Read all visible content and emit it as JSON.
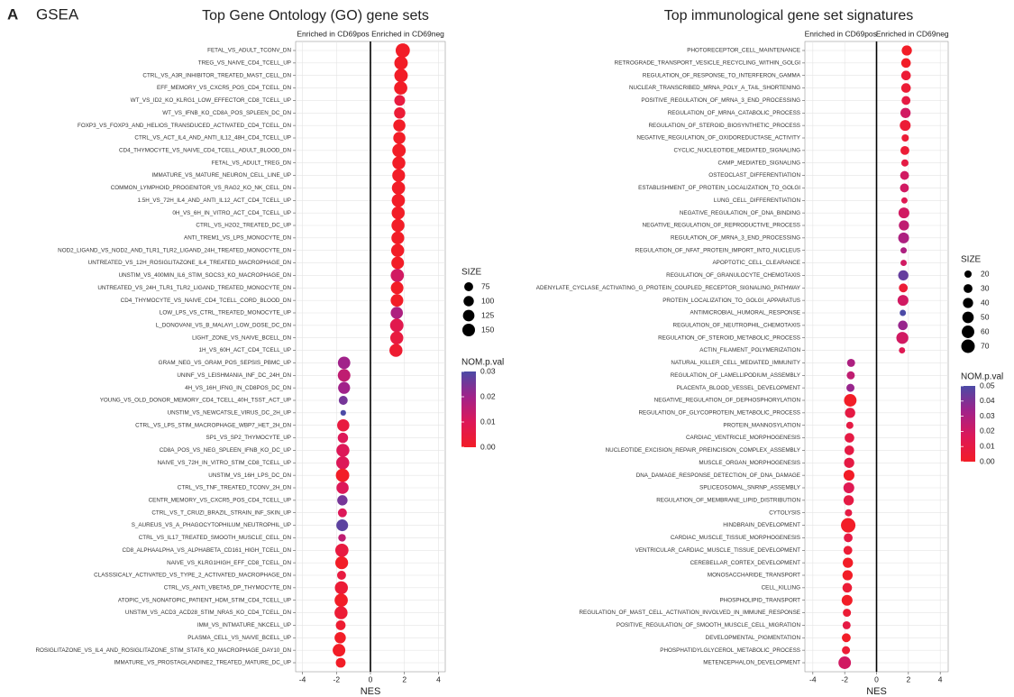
{
  "panel_label": "A",
  "panel_title": "GSEA",
  "chart_data": [
    {
      "type": "dot",
      "title": "Top Gene Ontology (GO) gene sets",
      "header_left": "Enriched in CD69pos",
      "header_right": "Enriched in CD69neg",
      "xlabel": "NES",
      "categories": [
        "FETAL_VS_ADULT_TCONV_DN",
        "TREG_VS_NAIVE_CD4_TCELL_UP",
        "CTRL_VS_A3R_INHIBITOR_TREATED_MAST_CELL_DN",
        "EFF_MEMORY_VS_CXCR5_POS_CD4_TCELL_DN",
        "WT_VS_ID2_KO_KLRG1_LOW_EFFECTOR_CD8_TCELL_UP",
        "WT_VS_IFNB_KO_CD8A_POS_SPLEEN_DC_DN",
        "FOXP3_VS_FOXP3_AND_HELIOS_TRANSDUCED_ACTIVATED_CD4_TCELL_DN",
        "CTRL_VS_ACT_IL4_AND_ANTI_IL12_48H_CD4_TCELL_UP",
        "CD4_THYMOCYTE_VS_NAIVE_CD4_TCELL_ADULT_BLOOD_DN",
        "FETAL_VS_ADULT_TREG_DN",
        "IMMATURE_VS_MATURE_NEURON_CELL_LINE_UP",
        "COMMON_LYMPHOID_PROGENITOR_VS_RAG2_KO_NK_CELL_DN",
        "1.5H_VS_72H_IL4_AND_ANTI_IL12_ACT_CD4_TCELL_UP",
        "0H_VS_6H_IN_VITRO_ACT_CD4_TCELL_UP",
        "CTRL_VS_H2O2_TREATED_DC_UP",
        "ANTI_TREM1_VS_LPS_MONOCYTE_DN",
        "NOD2_LIGAND_VS_NOD2_AND_TLR1_TLR2_LIGAND_24H_TREATED_MONOCYTE_DN",
        "UNTREATED_VS_12H_ROSIGLITAZONE_IL4_TREATED_MACROPHAGE_DN",
        "UNSTIM_VS_400MIN_IL6_STIM_SOCS3_KO_MACROPHAGE_DN",
        "UNTREATED_VS_24H_TLR1_TLR2_LIGAND_TREATED_MONOCYTE_DN",
        "CD4_THYMOCYTE_VS_NAIVE_CD4_TCELL_CORD_BLOOD_DN",
        "LOW_LPS_VS_CTRL_TREATED_MONOCYTE_UP",
        "L_DONOVANI_VS_B_MALAYI_LOW_DOSE_DC_DN",
        "LIGHT_ZONE_VS_NAIVE_BCELL_DN",
        "1H_VS_60H_ACT_CD4_TCELL_UP",
        "GRAM_NEG_VS_GRAM_POS_SEPSIS_PBMC_UP",
        "UNINF_VS_LEISHMANIA_INF_DC_24H_DN",
        "4H_VS_16H_IFNG_IN_CD8POS_DC_DN",
        "YOUNG_VS_OLD_DONOR_MEMORY_CD4_TCELL_40H_TSST_ACT_UP",
        "UNSTIM_VS_NEWCATSLE_VIRUS_DC_2H_UP",
        "CTRL_VS_LPS_STIM_MACROPHAGE_WBP7_HET_2H_DN",
        "SP1_VS_SP2_THYMOCYTE_UP",
        "CD8A_POS_VS_NEG_SPLEEN_IFNB_KO_DC_UP",
        "NAIVE_VS_72H_IN_VITRO_STIM_CD8_TCELL_UP",
        "UNSTIM_VS_16H_LPS_DC_DN",
        "CTRL_VS_TNF_TREATED_TCONV_2H_DN",
        "CENTR_MEMORY_VS_CXCR5_POS_CD4_TCELL_UP",
        "CTRL_VS_T_CRUZI_BRAZIL_STRAIN_INF_SKIN_UP",
        "S_AUREUS_VS_A_PHAGOCYTOPHILUM_NEUTROPHIL_UP",
        "CTRL_VS_IL17_TREATED_SMOOTH_MUSCLE_CELL_DN",
        "CD8_ALPHAALPHA_VS_ALPHABETA_CD161_HIGH_TCELL_DN",
        "NAIVE_VS_KLRG1HIGH_EFF_CD8_TCELL_DN",
        "CLASSSICALY_ACTIVATED_VS_TYPE_2_ACTIVATED_MACROPHAGE_DN",
        "CTRL_VS_ANTI_VBETA5_DP_THYMOCYTE_DN",
        "ATOPIC_VS_NONATOPIC_PATIENT_HDM_STIM_CD4_TCELL_UP",
        "UNSTIM_VS_ACD3_ACD28_STIM_NRAS_KO_CD4_TCELL_DN",
        "IMM_VS_INTMATURE_NKCELL_UP",
        "PLASMA_CELL_VS_NAIVE_BCELL_UP",
        "ROSIGLITAZONE_VS_IL4_AND_ROSIGLITAZONE_STIM_STAT6_KO_MACROPHAGE_DAY10_DN",
        "IMMATURE_VS_PROSTAGLANDINE2_TREATED_MATURE_DC_UP"
      ],
      "values": [
        1.9,
        1.8,
        1.8,
        1.78,
        1.72,
        1.72,
        1.7,
        1.7,
        1.68,
        1.67,
        1.66,
        1.65,
        1.64,
        1.63,
        1.62,
        1.61,
        1.6,
        1.6,
        1.58,
        1.57,
        1.56,
        1.55,
        1.55,
        1.55,
        1.5,
        -1.55,
        -1.55,
        -1.55,
        -1.6,
        -1.6,
        -1.6,
        -1.62,
        -1.62,
        -1.63,
        -1.64,
        -1.64,
        -1.65,
        -1.65,
        -1.66,
        -1.67,
        -1.68,
        -1.69,
        -1.7,
        -1.71,
        -1.72,
        -1.73,
        -1.75,
        -1.78,
        -1.85,
        -1.75
      ],
      "sizes": [
        190,
        170,
        170,
        165,
        110,
        120,
        140,
        140,
        170,
        160,
        155,
        165,
        165,
        160,
        160,
        155,
        160,
        150,
        165,
        150,
        150,
        140,
        170,
        160,
        160,
        145,
        150,
        135,
        75,
        30,
        140,
        100,
        160,
        160,
        170,
        140,
        100,
        75,
        130,
        55,
        165,
        155,
        75,
        160,
        165,
        160,
        90,
        120,
        150,
        90
      ],
      "pvals": [
        0,
        0,
        0,
        0,
        0.005,
        0.003,
        0,
        0,
        0,
        0,
        0,
        0,
        0,
        0,
        0,
        0,
        0,
        0,
        0.012,
        0,
        0,
        0.018,
        0.008,
        0.005,
        0.002,
        0.02,
        0.015,
        0.02,
        0.025,
        0.03,
        0.005,
        0.01,
        0.01,
        0.01,
        0,
        0.01,
        0.025,
        0.01,
        0.028,
        0.015,
        0.005,
        0,
        0.005,
        0.003,
        0,
        0.003,
        0.002,
        0,
        0,
        0
      ],
      "xlim": [
        -4.4,
        4.4
      ],
      "xticks": [
        -4,
        -2,
        0,
        2,
        4
      ],
      "grid": true,
      "size_title": "SIZE",
      "size_legend": [
        75,
        100,
        125,
        150
      ],
      "color_title": "NOM.p.val",
      "clim": [
        0,
        0.03
      ],
      "color_ticks": [
        0.03,
        0.02,
        0.01,
        {
          "value": 0,
          "label": "0.00"
        }
      ],
      "colors": [
        "#f21d27",
        "#dd1858",
        "#a1228a",
        "#4b4aa6"
      ]
    },
    {
      "type": "dot",
      "title": "Top immunological gene set signatures",
      "header_left": "Enriched in CD69pos",
      "header_right": "Enriched in CD69neg",
      "xlabel": "NES",
      "categories": [
        "PHOTORECEPTOR_CELL_MAINTENANCE",
        "RETROGRADE_TRANSPORT_VESICLE_RECYCLING_WITHIN_GOLGI",
        "REGULATION_OF_RESPONSE_TO_INTERFERON_GAMMA",
        "NUCLEAR_TRANSCRIBED_MRNA_POLY_A_TAIL_SHORTENING",
        "POSITIVE_REGULATION_OF_MRNA_3_END_PROCESSING",
        "REGULATION_OF_MRNA_CATABOLIC_PROCESS",
        "REGULATION_OF_STEROID_BIOSYNTHETIC_PROCESS",
        "NEGATIVE_REGULATION_OF_OXIDOREDUCTASE_ACTIVITY",
        "CYCLIC_NUCLEOTIDE_MEDIATED_SIGNALING",
        "CAMP_MEDIATED_SIGNALING",
        "OSTEOCLAST_DIFFERENTIATION",
        "ESTABLISHMENT_OF_PROTEIN_LOCALIZATION_TO_GOLGI",
        "LUNG_CELL_DIFFERENTIATION",
        "NEGATIVE_REGULATION_OF_DNA_BINDING",
        "NEGATIVE_REGULATION_OF_REPRODUCTIVE_PROCESS",
        "REGULATION_OF_MRNA_3_END_PROCESSING",
        "REGULATION_OF_NFAT_PROTEIN_IMPORT_INTO_NUCLEUS",
        "APOPTOTIC_CELL_CLEARANCE",
        "REGULATION_OF_GRANULOCYTE_CHEMOTAXIS",
        "ADENYLATE_CYCLASE_ACTIVATING_G_PROTEIN_COUPLED_RECEPTOR_SIGNALING_PATHWAY",
        "PROTEIN_LOCALIZATION_TO_GOLGI_APPARATUS",
        "ANTIMICROBIAL_HUMORAL_RESPONSE",
        "REGULATION_OF_NEUTROPHIL_CHEMOTAXIS",
        "REGULATION_OF_STEROID_METABOLIC_PROCESS",
        "ACTIN_FILAMENT_POLYMERIZATION",
        "NATURAL_KILLER_CELL_MEDIATED_IMMUNITY",
        "REGULATION_OF_LAMELLIPODIUM_ASSEMBLY",
        "PLACENTA_BLOOD_VESSEL_DEVELOPMENT",
        "NEGATIVE_REGULATION_OF_DEPHOSPHORYLATION",
        "REGULATION_OF_GLYCOPROTEIN_METABOLIC_PROCESS",
        "PROTEIN_MANNOSYLATION",
        "CARDIAC_VENTRICLE_MORPHOGENESIS",
        "NUCLEOTIDE_EXCISION_REPAIR_PREINCISION_COMPLEX_ASSEMBLY",
        "MUSCLE_ORGAN_MORPHOGENESIS",
        "DNA_DAMAGE_RESPONSE_DETECTION_OF_DNA_DAMAGE",
        "SPLICEOSOMAL_SNRNP_ASSEMBLY",
        "REGULATION_OF_MEMBRANE_LIPID_DISTRIBUTION",
        "CYTOLYSIS",
        "HINDBRAIN_DEVELOPMENT",
        "CARDIAC_MUSCLE_TISSUE_MORPHOGENESIS",
        "VENTRICULAR_CARDIAC_MUSCLE_TISSUE_DEVELOPMENT",
        "CEREBELLAR_CORTEX_DEVELOPMENT",
        "MONOSACCHARIDE_TRANSPORT",
        "CELL_KILLING",
        "PHOSPHOLIPID_TRANSPORT",
        "REGULATION_OF_MAST_CELL_ACTIVATION_INVOLVED_IN_IMMUNE_RESPONSE",
        "POSITIVE_REGULATION_OF_SMOOTH_MUSCLE_CELL_MIGRATION",
        "DEVELOPMENTAL_PIGMENTATION",
        "PHOSPHATIDYLGLYCEROL_METABOLIC_PROCESS",
        "METENCEPHALON_DEVELOPMENT"
      ],
      "values": [
        1.9,
        1.85,
        1.85,
        1.85,
        1.85,
        1.82,
        1.8,
        1.8,
        1.78,
        1.78,
        1.76,
        1.75,
        1.75,
        1.72,
        1.72,
        1.7,
        1.7,
        1.7,
        1.68,
        1.68,
        1.66,
        1.65,
        1.65,
        1.62,
        1.6,
        -1.6,
        -1.62,
        -1.64,
        -1.65,
        -1.66,
        -1.68,
        -1.7,
        -1.71,
        -1.72,
        -1.73,
        -1.74,
        -1.75,
        -1.76,
        -1.78,
        -1.78,
        -1.8,
        -1.8,
        -1.82,
        -1.84,
        -1.85,
        -1.86,
        -1.88,
        -1.9,
        -1.92,
        -2.0
      ],
      "sizes": [
        40,
        35,
        35,
        35,
        30,
        40,
        45,
        20,
        30,
        20,
        30,
        30,
        15,
        45,
        40,
        45,
        15,
        15,
        40,
        30,
        45,
        15,
        35,
        55,
        15,
        25,
        25,
        25,
        60,
        40,
        20,
        35,
        35,
        40,
        45,
        45,
        40,
        20,
        80,
        30,
        30,
        40,
        40,
        35,
        45,
        25,
        25,
        30,
        25,
        60
      ],
      "pvals": [
        0,
        0,
        0.005,
        0.005,
        0.01,
        0.02,
        0.005,
        0.005,
        0.005,
        0.01,
        0.02,
        0.02,
        0.015,
        0.02,
        0.025,
        0.03,
        0.03,
        0.02,
        0.045,
        0.005,
        0.02,
        0.05,
        0.035,
        0.02,
        0.015,
        0.03,
        0.025,
        0.035,
        0,
        0.01,
        0.01,
        0.01,
        0.01,
        0.01,
        0,
        0.015,
        0.01,
        0.01,
        0,
        0.01,
        0.005,
        0,
        0,
        0.005,
        0,
        0.005,
        0.01,
        0,
        0.005,
        0.02
      ],
      "xlim": [
        -4.5,
        4.5
      ],
      "xticks": [
        -4,
        -2,
        0,
        2,
        4
      ],
      "grid": true,
      "size_title": "SIZE",
      "size_legend": [
        20,
        30,
        40,
        50,
        60,
        70
      ],
      "color_title": "NOM.p.val",
      "clim": [
        0,
        0.05
      ],
      "color_ticks": [
        0.05,
        0.04,
        0.03,
        0.02,
        0.01,
        {
          "value": 0,
          "label": "0.00"
        }
      ],
      "colors": [
        "#f21d27",
        "#dd1858",
        "#a1228a",
        "#4b4aa6"
      ]
    }
  ]
}
